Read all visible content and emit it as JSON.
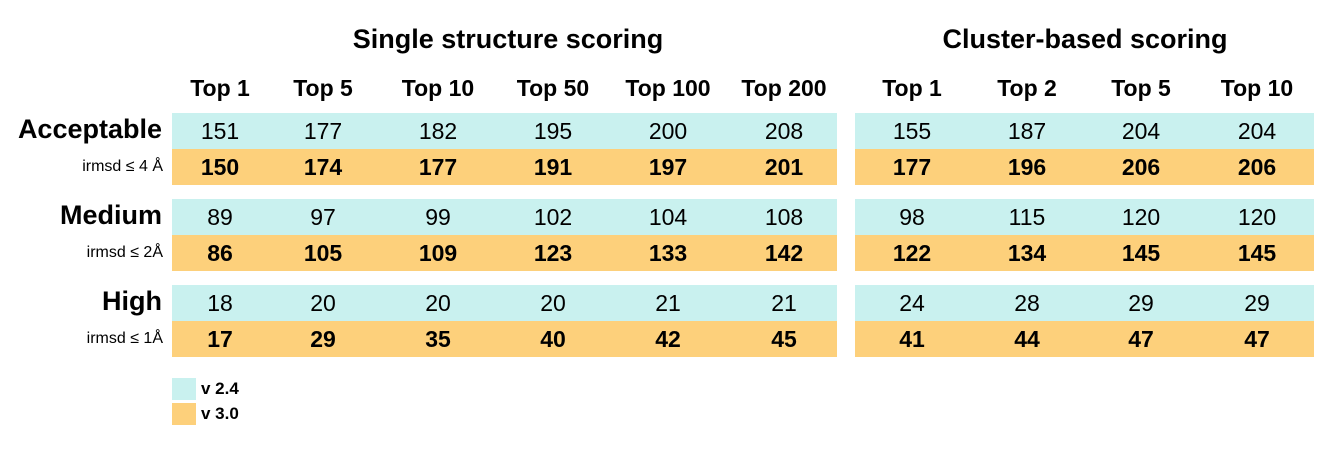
{
  "chart_data": {
    "type": "table",
    "groups": [
      {
        "title": "Single structure scoring",
        "columns": [
          "Top 1",
          "Top 5",
          "Top 10",
          "Top 50",
          "Top 100",
          "Top 200"
        ]
      },
      {
        "title": "Cluster-based scoring",
        "columns": [
          "Top 1",
          "Top 2",
          "Top 5",
          "Top 10"
        ]
      }
    ],
    "rows": [
      {
        "label": "Acceptable",
        "sublabel": "irmsd ≤ 4 Å",
        "v24": {
          "single": [
            "151",
            "177",
            "182",
            "195",
            "200",
            "208"
          ],
          "cluster": [
            "155",
            "187",
            "204",
            "204"
          ]
        },
        "v30": {
          "single": [
            "150",
            "174",
            "177",
            "191",
            "197",
            "201"
          ],
          "cluster": [
            "177",
            "196",
            "206",
            "206"
          ]
        }
      },
      {
        "label": "Medium",
        "sublabel": "irmsd ≤ 2Å",
        "v24": {
          "single": [
            "89",
            "97",
            "99",
            "102",
            "104",
            "108"
          ],
          "cluster": [
            "98",
            "115",
            "120",
            "120"
          ]
        },
        "v30": {
          "single": [
            "86",
            "105",
            "109",
            "123",
            "133",
            "142"
          ],
          "cluster": [
            "122",
            "134",
            "145",
            "145"
          ]
        }
      },
      {
        "label": "High",
        "sublabel": "irmsd ≤ 1Å",
        "v24": {
          "single": [
            "18",
            "20",
            "20",
            "20",
            "21",
            "21"
          ],
          "cluster": [
            "24",
            "28",
            "29",
            "29"
          ]
        },
        "v30": {
          "single": [
            "17",
            "29",
            "35",
            "40",
            "42",
            "45"
          ],
          "cluster": [
            "41",
            "44",
            "47",
            "47"
          ]
        }
      }
    ],
    "legend": [
      {
        "name": "v 2.4",
        "color": "#c9f1ef"
      },
      {
        "name": "v 3.0",
        "color": "#fdd07b"
      }
    ]
  }
}
